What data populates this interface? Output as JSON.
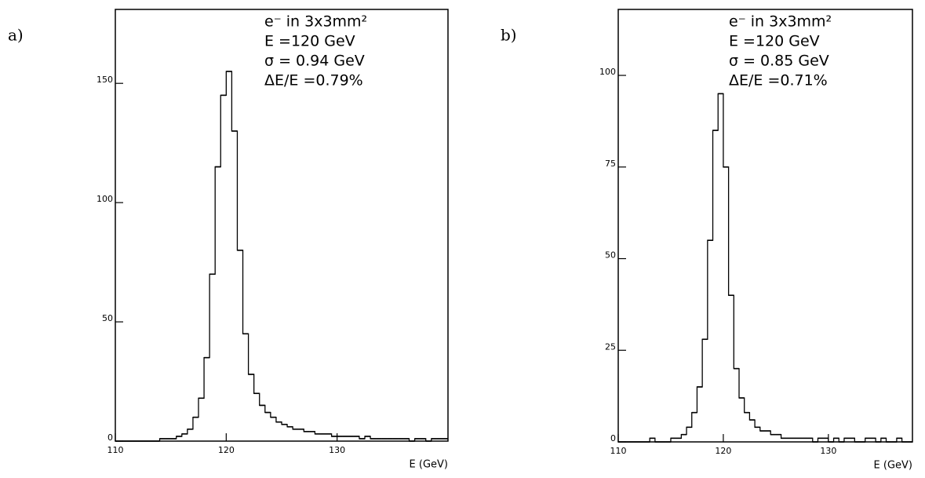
{
  "chart_data": [
    {
      "type": "histogram",
      "label": "a)",
      "annotations": [
        "e⁻ in 3x3mm²",
        "E =120 GeV",
        "σ = 0.94 GeV",
        "ΔE/E =0.79%"
      ],
      "x_label": "E (GeV)",
      "xlim": [
        110,
        140
      ],
      "xticks": [
        110,
        120,
        130
      ],
      "ylim": [
        0,
        181
      ],
      "yticks": [
        0,
        50,
        100,
        150
      ],
      "color": "#000000",
      "bins": [
        110,
        110.5,
        111,
        111.5,
        112,
        112.5,
        113,
        113.5,
        114,
        114.5,
        115,
        115.5,
        116,
        116.5,
        117,
        117.5,
        118,
        118.5,
        119,
        119.5,
        120,
        120.5,
        121,
        121.5,
        122,
        122.5,
        123,
        123.5,
        124,
        124.5,
        125,
        125.5,
        126,
        126.5,
        127,
        127.5,
        128,
        128.5,
        129,
        129.5,
        130,
        130.5,
        131,
        131.5,
        132,
        132.5,
        133,
        133.5,
        134,
        134.5,
        135,
        135.5,
        136,
        136.5,
        137,
        137.5,
        138,
        138.5,
        139,
        139.5,
        140
      ],
      "counts": [
        0,
        0,
        0,
        0,
        0,
        0,
        0,
        0,
        1,
        1,
        1,
        2,
        3,
        5,
        10,
        18,
        35,
        70,
        115,
        145,
        155,
        130,
        80,
        45,
        28,
        20,
        15,
        12,
        10,
        8,
        7,
        6,
        5,
        5,
        4,
        4,
        3,
        3,
        3,
        2,
        2,
        2,
        2,
        2,
        1,
        2,
        1,
        1,
        1,
        1,
        1,
        1,
        1,
        0,
        1,
        1,
        0,
        1,
        1,
        1
      ]
    },
    {
      "type": "histogram",
      "label": "b)",
      "annotations": [
        "e⁻ in 3x3mm²",
        "E =120 GeV",
        "σ = 0.85 GeV",
        "ΔE/E =0.71%"
      ],
      "x_label": "E (GeV)",
      "xlim": [
        110,
        138
      ],
      "xticks": [
        110,
        120,
        130
      ],
      "ylim": [
        0,
        118
      ],
      "yticks": [
        0,
        25,
        50,
        75,
        100
      ],
      "color": "#000000",
      "bins": [
        110,
        110.5,
        111,
        111.5,
        112,
        112.5,
        113,
        113.5,
        114,
        114.5,
        115,
        115.5,
        116,
        116.5,
        117,
        117.5,
        118,
        118.5,
        119,
        119.5,
        120,
        120.5,
        121,
        121.5,
        122,
        122.5,
        123,
        123.5,
        124,
        124.5,
        125,
        125.5,
        126,
        126.5,
        127,
        127.5,
        128,
        128.5,
        129,
        129.5,
        130,
        130.5,
        131,
        131.5,
        132,
        132.5,
        133,
        133.5,
        134,
        134.5,
        135,
        135.5,
        136,
        136.5,
        137,
        137.5,
        138
      ],
      "counts": [
        0,
        0,
        0,
        0,
        0,
        0,
        1,
        0,
        0,
        0,
        1,
        1,
        2,
        4,
        8,
        15,
        28,
        55,
        85,
        95,
        75,
        40,
        20,
        12,
        8,
        6,
        4,
        3,
        3,
        2,
        2,
        1,
        1,
        1,
        1,
        1,
        1,
        0,
        1,
        1,
        0,
        1,
        0,
        1,
        1,
        0,
        0,
        1,
        1,
        0,
        1,
        0,
        0,
        1,
        0,
        0
      ]
    }
  ]
}
